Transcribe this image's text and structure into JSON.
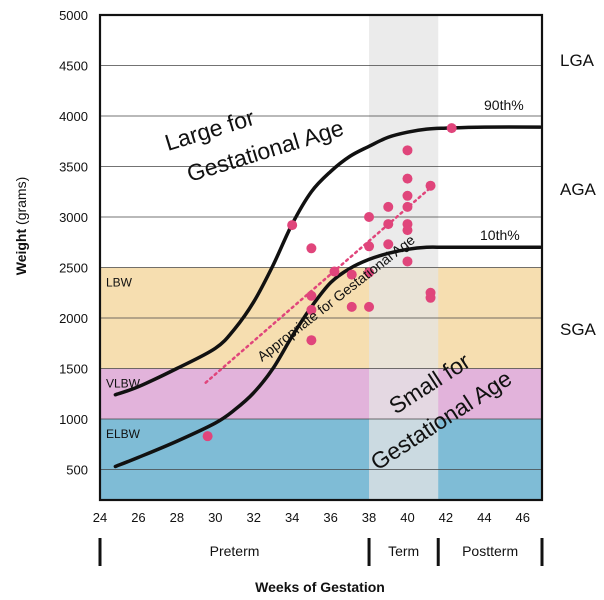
{
  "chart_data": {
    "type": "scatter",
    "xlabel": "Weeks of Gestation",
    "ylabel": {
      "bold": "Weight",
      "unit": " (grams)"
    },
    "xlim": [
      24,
      47
    ],
    "ylim": [
      0,
      5000
    ],
    "x_ticks": [
      "24",
      "26",
      "28",
      "30",
      "32",
      "34",
      "36",
      "38",
      "40",
      "42",
      "44",
      "46"
    ],
    "y_ticks": [
      "500",
      "1000",
      "1500",
      "2000",
      "2500",
      "3000",
      "3500",
      "4000",
      "4500",
      "5000"
    ],
    "grid": true,
    "colors": {
      "elbw": "#7fbcd6",
      "vlbw": "#e2b3db",
      "lbw": "#f6deb0",
      "term_band": "#e4e4e4",
      "points": "#e0457b",
      "curve": "#111111"
    },
    "weight_bands": [
      {
        "label": "ELBW",
        "from": 0,
        "to": 1000
      },
      {
        "label": "VLBW",
        "from": 1000,
        "to": 1500
      },
      {
        "label": "LBW",
        "from": 1500,
        "to": 2500
      }
    ],
    "term_band": {
      "from": 38,
      "to": 41.6
    },
    "periods": [
      {
        "label": "Preterm",
        "from": 24,
        "to": 38
      },
      {
        "label": "Term",
        "from": 38,
        "to": 41.6
      },
      {
        "label": "Postterm",
        "from": 41.6,
        "to": 47
      }
    ],
    "series": [
      {
        "name": "90th%",
        "type": "line",
        "x": [
          24.8,
          26,
          28,
          30,
          31,
          32,
          33,
          34,
          35,
          36,
          37,
          38,
          39,
          40,
          41,
          42,
          44,
          47
        ],
        "y": [
          1240,
          1320,
          1500,
          1700,
          1890,
          2160,
          2520,
          2930,
          3250,
          3450,
          3600,
          3700,
          3790,
          3840,
          3870,
          3880,
          3890,
          3890
        ]
      },
      {
        "name": "10th%",
        "type": "line",
        "x": [
          24.8,
          26,
          28,
          30,
          31,
          32,
          33,
          34,
          35,
          36,
          37,
          38,
          39,
          40,
          41,
          42,
          44,
          47
        ],
        "y": [
          530,
          620,
          780,
          960,
          1090,
          1260,
          1500,
          1820,
          2110,
          2350,
          2490,
          2580,
          2640,
          2680,
          2700,
          2700,
          2700,
          2700
        ]
      },
      {
        "name": "Appropriate for Gestational Age",
        "type": "trend",
        "x": [
          29.5,
          41.5
        ],
        "y": [
          1360,
          3340
        ]
      },
      {
        "name": "points",
        "type": "scatter",
        "points": [
          [
            29.6,
            830
          ],
          [
            34.0,
            2920
          ],
          [
            35.0,
            2690
          ],
          [
            35.0,
            2220
          ],
          [
            35.0,
            2080
          ],
          [
            35.0,
            1780
          ],
          [
            36.2,
            2460
          ],
          [
            37.1,
            2430
          ],
          [
            37.1,
            2110
          ],
          [
            38.0,
            3000
          ],
          [
            38.0,
            2710
          ],
          [
            38.0,
            2450
          ],
          [
            38.0,
            2110
          ],
          [
            39.0,
            3100
          ],
          [
            39.0,
            2930
          ],
          [
            39.0,
            2730
          ],
          [
            40.0,
            3660
          ],
          [
            40.0,
            3380
          ],
          [
            40.0,
            3210
          ],
          [
            40.0,
            3100
          ],
          [
            40.0,
            2930
          ],
          [
            40.0,
            2870
          ],
          [
            40.0,
            2560
          ],
          [
            41.2,
            3310
          ],
          [
            41.2,
            2250
          ],
          [
            41.2,
            2200
          ],
          [
            42.3,
            3880
          ]
        ]
      }
    ],
    "annotations": {
      "lga": "LGA",
      "aga": "AGA",
      "sga": "SGA",
      "p90": "90th%",
      "p10": "10th%",
      "large_line1": "Large for",
      "large_line2": "Gestational Age",
      "small_line1": "Small for",
      "small_line2": "Gestational Age",
      "appropriate": "Appropriate for Gestational Age"
    }
  }
}
